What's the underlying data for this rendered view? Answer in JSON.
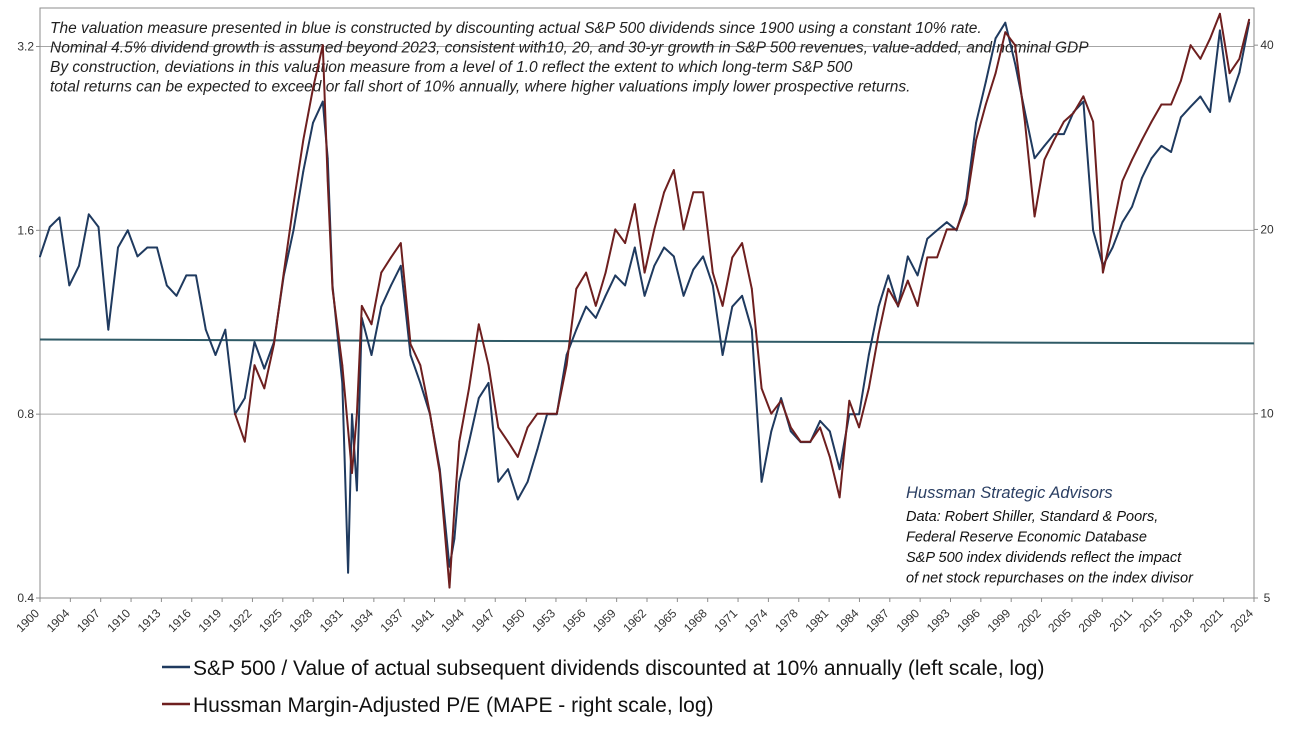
{
  "chart_data": {
    "type": "line",
    "title": "",
    "notes": [
      "The valuation measure presented in blue is constructed by discounting actual S&P 500 dividends since 1900 using a constant 10% rate.",
      "Nominal 4.5% dividend growth is assumed beyond 2023, consistent with10, 20, and 30-yr growth in S&P 500 revenues, value-added, and nominal GDP",
      "By construction, deviations in this valuation measure from a level of 1.0  reflect the extent to which long-term S&P 500",
      "total returns can be expected to exceed or fall short of 10% annually, where higher valuations imply lower prospective returns."
    ],
    "credits": {
      "title": "Hussman Strategic Advisors",
      "lines": [
        "Data: Robert Shiller, Standard & Poors,",
        "Federal Reserve Economic Database",
        "S&P 500 index dividends reflect the impact",
        "of net stock repurchases on the index divisor"
      ]
    },
    "x_ticks": [
      "1900",
      "1904",
      "1907",
      "1910",
      "1913",
      "1916",
      "1919",
      "1922",
      "1925",
      "1928",
      "1931",
      "1934",
      "1937",
      "1941",
      "1944",
      "1947",
      "1950",
      "1953",
      "1956",
      "1959",
      "1962",
      "1965",
      "1968",
      "1971",
      "1974",
      "1978",
      "1981",
      "1984",
      "1987",
      "1990",
      "1993",
      "1996",
      "1999",
      "2002",
      "2005",
      "2008",
      "2011",
      "2015",
      "2018",
      "2021",
      "2024"
    ],
    "xlim": [
      1900,
      2024.5
    ],
    "left_axis": {
      "scale": "log",
      "ticks": [
        0.4,
        0.8,
        1.6,
        3.2
      ],
      "tick_labels": [
        "0.4",
        "0.8",
        "1.6",
        "3.2"
      ],
      "range": [
        0.4,
        3.7
      ]
    },
    "right_axis": {
      "scale": "log",
      "ticks": [
        5,
        10,
        20,
        40
      ],
      "tick_labels": [
        "5",
        "10",
        "20",
        "40"
      ],
      "range": [
        5,
        46
      ]
    },
    "reference_line": {
      "axis": "left",
      "y_start": 1.06,
      "y_end": 1.045
    },
    "grid": "horizontal",
    "legend_position": "bottom",
    "series": [
      {
        "name": "S&P 500 / Value of actual subsequent dividends discounted at 10% annually (left scale, log)",
        "axis": "left",
        "color": "#1f3a5f",
        "x": [
          1900,
          1901,
          1902,
          1903,
          1904,
          1905,
          1906,
          1907,
          1908,
          1909,
          1910,
          1911,
          1912,
          1913,
          1914,
          1915,
          1916,
          1917,
          1918,
          1919,
          1920,
          1921,
          1922,
          1923,
          1924,
          1925,
          1926,
          1927,
          1928,
          1929,
          1929.5,
          1930,
          1931,
          1931.6,
          1932,
          1932.5,
          1933,
          1934,
          1935,
          1936,
          1937,
          1938,
          1939,
          1940,
          1941,
          1942,
          1942.5,
          1943,
          1944,
          1945,
          1946,
          1947,
          1948,
          1949,
          1950,
          1951,
          1952,
          1953,
          1954,
          1955,
          1956,
          1957,
          1958,
          1959,
          1960,
          1961,
          1962,
          1963,
          1964,
          1965,
          1966,
          1967,
          1968,
          1969,
          1970,
          1971,
          1972,
          1973,
          1974,
          1975,
          1976,
          1977,
          1978,
          1979,
          1980,
          1981,
          1982,
          1983,
          1984,
          1985,
          1986,
          1987,
          1988,
          1989,
          1990,
          1991,
          1992,
          1993,
          1994,
          1995,
          1996,
          1997,
          1998,
          1999,
          2000,
          2001,
          2002,
          2003,
          2004,
          2005,
          2006,
          2007,
          2008,
          2009,
          2010,
          2011,
          2012,
          2013,
          2014,
          2015,
          2016,
          2017,
          2018,
          2019,
          2020,
          2021,
          2022,
          2023,
          2024
        ],
        "values": [
          1.45,
          1.62,
          1.68,
          1.3,
          1.4,
          1.7,
          1.62,
          1.1,
          1.5,
          1.6,
          1.45,
          1.5,
          1.5,
          1.3,
          1.25,
          1.35,
          1.35,
          1.1,
          1.0,
          1.1,
          0.8,
          0.85,
          1.05,
          0.95,
          1.05,
          1.35,
          1.6,
          2.0,
          2.4,
          2.6,
          2.1,
          1.3,
          0.9,
          0.44,
          0.8,
          0.6,
          1.15,
          1.0,
          1.2,
          1.3,
          1.4,
          1.0,
          0.9,
          0.8,
          0.65,
          0.45,
          0.5,
          0.62,
          0.72,
          0.85,
          0.9,
          0.62,
          0.65,
          0.58,
          0.62,
          0.7,
          0.8,
          0.8,
          1.0,
          1.1,
          1.2,
          1.15,
          1.25,
          1.35,
          1.3,
          1.5,
          1.25,
          1.4,
          1.5,
          1.45,
          1.25,
          1.38,
          1.45,
          1.3,
          1.0,
          1.2,
          1.25,
          1.1,
          0.62,
          0.75,
          0.85,
          0.75,
          0.72,
          0.72,
          0.78,
          0.75,
          0.65,
          0.8,
          0.8,
          1.0,
          1.2,
          1.35,
          1.2,
          1.45,
          1.35,
          1.55,
          1.6,
          1.65,
          1.6,
          1.8,
          2.4,
          2.8,
          3.3,
          3.5,
          3.0,
          2.5,
          2.1,
          2.2,
          2.3,
          2.3,
          2.5,
          2.6,
          1.6,
          1.4,
          1.5,
          1.65,
          1.75,
          1.95,
          2.1,
          2.2,
          2.15,
          2.45,
          2.55,
          2.65,
          2.5,
          3.4,
          2.6,
          2.9,
          3.5
        ]
      },
      {
        "name": "Hussman Margin-Adjusted P/E (MAPE - right scale, log)",
        "axis": "right",
        "color": "#6e1f1f",
        "x": [
          1920,
          1921,
          1922,
          1923,
          1924,
          1925,
          1926,
          1927,
          1928,
          1929,
          1929.5,
          1930,
          1931,
          1932,
          1932.5,
          1933,
          1934,
          1935,
          1936,
          1937,
          1938,
          1939,
          1940,
          1941,
          1942,
          1942.5,
          1943,
          1944,
          1945,
          1946,
          1947,
          1948,
          1949,
          1950,
          1951,
          1952,
          1953,
          1954,
          1955,
          1956,
          1957,
          1958,
          1959,
          1960,
          1961,
          1962,
          1963,
          1964,
          1965,
          1966,
          1967,
          1968,
          1969,
          1970,
          1971,
          1972,
          1973,
          1974,
          1975,
          1976,
          1977,
          1978,
          1979,
          1980,
          1981,
          1982,
          1983,
          1984,
          1985,
          1986,
          1987,
          1988,
          1989,
          1990,
          1991,
          1992,
          1993,
          1994,
          1995,
          1996,
          1997,
          1998,
          1999,
          2000,
          2001,
          2002,
          2003,
          2004,
          2005,
          2006,
          2007,
          2008,
          2009,
          2010,
          2011,
          2012,
          2013,
          2014,
          2015,
          2016,
          2017,
          2018,
          2019,
          2020,
          2021,
          2022,
          2023,
          2024
        ],
        "values": [
          10.0,
          9.0,
          12.0,
          11.0,
          13.0,
          17.0,
          22.0,
          28.0,
          34.0,
          40.0,
          24.0,
          16.0,
          12.0,
          8.0,
          10.0,
          15.0,
          14.0,
          17.0,
          18.0,
          19.0,
          13.0,
          12.0,
          10.0,
          8.0,
          5.2,
          7.0,
          9.0,
          11.0,
          14.0,
          12.0,
          9.5,
          9.0,
          8.5,
          9.5,
          10.0,
          10.0,
          10.0,
          12.0,
          16.0,
          17.0,
          15.0,
          17.0,
          20.0,
          19.0,
          22.0,
          17.0,
          20.0,
          23.0,
          25.0,
          20.0,
          23.0,
          23.0,
          17.0,
          15.0,
          18.0,
          19.0,
          16.0,
          11.0,
          10.0,
          10.5,
          9.5,
          9.0,
          9.0,
          9.5,
          8.5,
          7.3,
          10.5,
          9.5,
          11.0,
          13.5,
          16.0,
          15.0,
          16.5,
          15.0,
          18.0,
          18.0,
          20.0,
          20.0,
          22.0,
          28.0,
          32.0,
          36.0,
          42.0,
          40.0,
          30.0,
          21.0,
          26.0,
          28.0,
          30.0,
          31.0,
          33.0,
          30.0,
          17.0,
          20.0,
          24.0,
          26.0,
          28.0,
          30.0,
          32.0,
          32.0,
          35.0,
          40.0,
          38.0,
          41.0,
          45.0,
          36.0,
          38.0,
          44.0
        ]
      }
    ]
  }
}
